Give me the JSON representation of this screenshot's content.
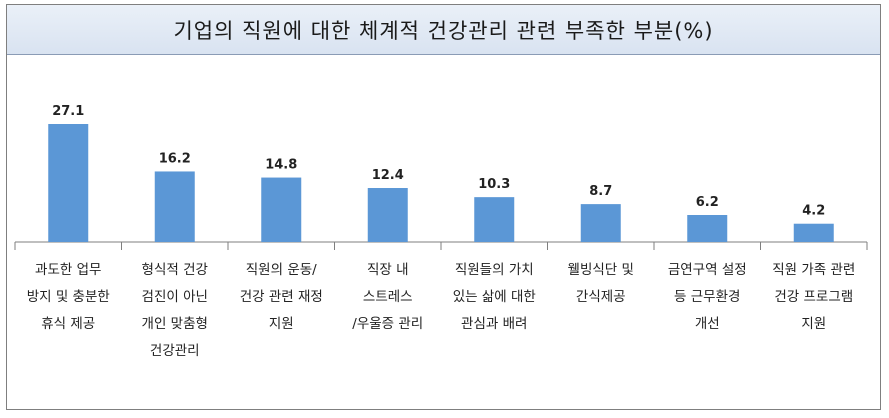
{
  "title": "기업의 직원에 대한 체계적 건강관리 관련 부족한 부분(%)",
  "colors": {
    "bar": "#5b97d6",
    "axis": "#7f7f7f"
  },
  "chart_data": {
    "type": "bar",
    "title": "기업의 직원에 대한 체계적 건강관리 관련 부족한 부분(%)",
    "categories": [
      [
        "과도한 업무",
        "방지 및 충분한",
        "휴식 제공"
      ],
      [
        "형식적 건강",
        "검진이 아닌",
        "개인 맞춤형",
        "건강관리"
      ],
      [
        "직원의 운동/",
        "건강 관련 재정",
        "지원"
      ],
      [
        "직장 내",
        "스트레스",
        "/우울증 관리"
      ],
      [
        "직원들의 가치",
        "있는 삶에 대한",
        "관심과 배려"
      ],
      [
        "웰빙식단 및",
        "간식제공"
      ],
      [
        "금연구역 설정",
        "등 근무환경",
        "개선"
      ],
      [
        "직원 가족 관련",
        "건강 프로그램",
        "지원"
      ]
    ],
    "values": [
      27.1,
      16.2,
      14.8,
      12.4,
      10.3,
      8.7,
      6.2,
      4.2
    ],
    "value_labels": [
      "27.1",
      "16.2",
      "14.8",
      "12.4",
      "10.3",
      "8.7",
      "6.2",
      "4.2"
    ],
    "ylim": [
      0,
      30
    ],
    "grid": false,
    "legend": "none"
  }
}
